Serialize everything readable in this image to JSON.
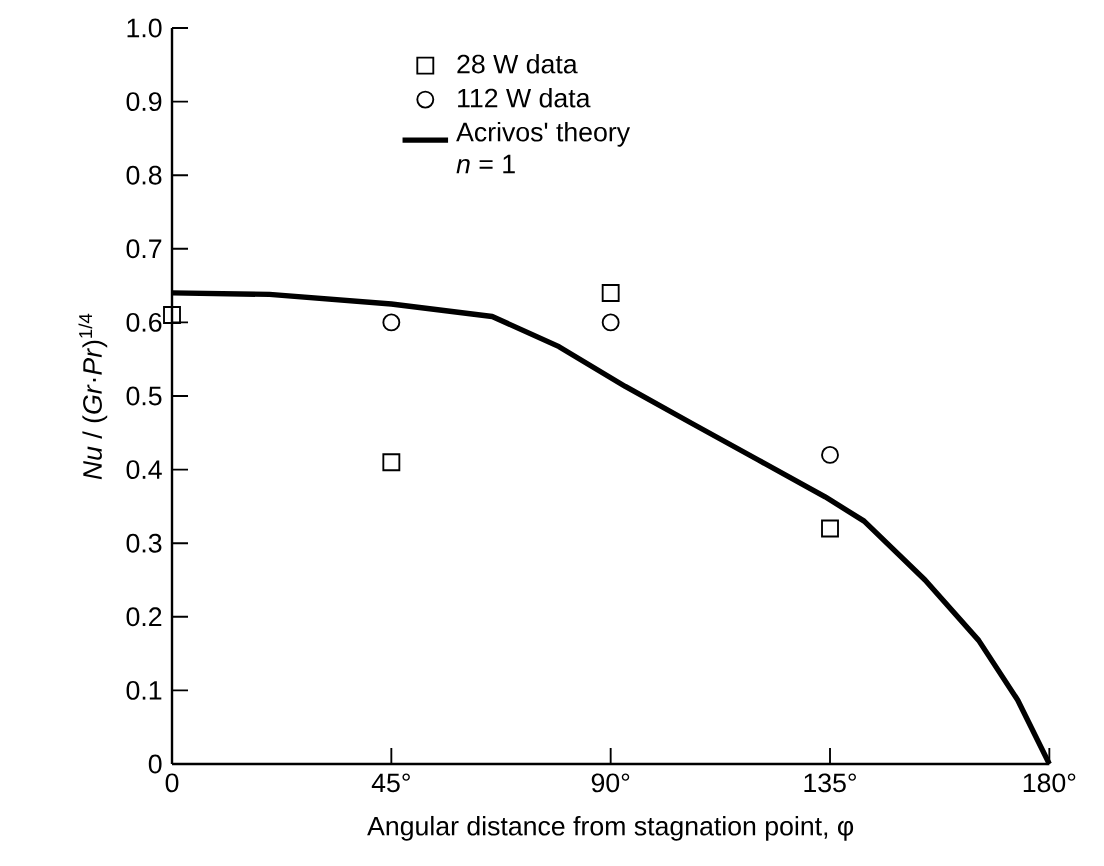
{
  "chart_data": {
    "type": "scatter",
    "xlabel": "Angular distance from stagnation point,  φ",
    "ylabel": "*Nu* / (*Gr*·*Pr*)$^{1/4}$",
    "xlim": [
      0,
      180
    ],
    "ylim": [
      0,
      1.0
    ],
    "xticks": [
      0,
      {
        "value": 45,
        "label": "45°"
      },
      {
        "value": 90,
        "label": "90°"
      },
      {
        "value": 135,
        "label": "135°"
      },
      {
        "value": 180,
        "label": "180°"
      }
    ],
    "yticks": [
      0,
      0.1,
      0.2,
      0.3,
      0.4,
      0.5,
      0.6,
      0.7,
      0.8,
      0.9,
      {
        "value": 1.0,
        "label": "1.0"
      }
    ],
    "legend": "top left",
    "grid": false,
    "series": [
      {
        "name": "28  W data",
        "marker": "square",
        "color": "#000000",
        "x": [
          0,
          45,
          90,
          135
        ],
        "values": [
          0.61,
          0.41,
          0.64,
          0.32
        ]
      },
      {
        "name": "112 W data",
        "marker": "circle",
        "color": "#000000",
        "x": [
          45,
          90,
          135
        ],
        "values": [
          0.6,
          0.6,
          0.42
        ]
      },
      {
        "name": "Acrivos' theory *n* = 1",
        "type": "line",
        "line_style": "solid",
        "color": "#000000",
        "x": [
          0,
          20,
          45,
          65.7,
          79.4,
          93,
          106.6,
          120.3,
          134,
          142,
          154.5,
          165.5,
          173.5,
          180
        ],
        "values": [
          0.64,
          0.638,
          0.625,
          0.608,
          0.567,
          0.513,
          0.463,
          0.413,
          0.363,
          0.33,
          0.25,
          0.168,
          0.087,
          0
        ]
      }
    ]
  }
}
